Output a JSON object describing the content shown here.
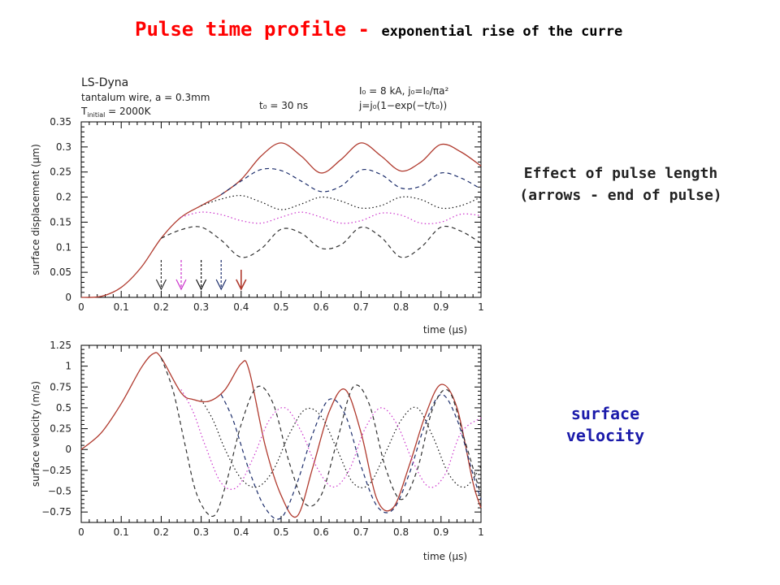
{
  "slide": {
    "title": "Pulse time profile - ",
    "title_sub": "exponential rise of the current",
    "note_effect_line1": "Effect of pulse length",
    "note_effect_line2": "(arrows - end of pulse)",
    "note_velocity_line1": "surface",
    "note_velocity_line2": "velocity"
  },
  "colors": {
    "title": "#ff0000",
    "note_velocity": "#1a1aaa",
    "t_0.4": "#b03a2e",
    "t_0.35": "#1c2d6b",
    "t_0.30": "#111111",
    "t_0.25": "#cc33cc",
    "t_0.20": "#303030"
  },
  "chart_data": [
    {
      "type": "line",
      "header": {
        "code": "LS-Dyna",
        "case": "tantalum wire, a = 0.3mm",
        "temp_label": "T",
        "temp_sub": "initial",
        "temp_value": " = 2000K",
        "t0": "t₀ = 30 ns",
        "current": "I₀ = 8 kA, j₀=I₀/πa²",
        "formula": "j=j₀(1−exp(−t/t₀))"
      },
      "xlabel": "time (μs)",
      "ylabel": "surface displacement (μm)",
      "xlim": [
        0,
        1
      ],
      "ylim": [
        0,
        0.35
      ],
      "xticks": [
        "0",
        "0.1",
        "0.2",
        "0.3",
        "0.4",
        "0.5",
        "0.6",
        "0.7",
        "0.8",
        "0.9",
        "1"
      ],
      "yticks": [
        "0",
        "0.05",
        "0.1",
        "0.15",
        "0.2",
        "0.25",
        "0.3",
        "0.35"
      ],
      "grid": false,
      "arrows": [
        {
          "x": 0.2,
          "series": "t_0.20"
        },
        {
          "x": 0.25,
          "series": "t_0.25"
        },
        {
          "x": 0.3,
          "series": "t_0.30"
        },
        {
          "x": 0.35,
          "series": "t_0.35"
        },
        {
          "x": 0.4,
          "series": "t_0.4"
        }
      ],
      "series": [
        {
          "key": "t_0.4",
          "style": "solid",
          "x": [
            0,
            0.05,
            0.1,
            0.15,
            0.2,
            0.25,
            0.3,
            0.35,
            0.4,
            0.45,
            0.5,
            0.55,
            0.6,
            0.65,
            0.7,
            0.75,
            0.8,
            0.85,
            0.9,
            0.95,
            1.0
          ],
          "y": [
            0,
            0.002,
            0.02,
            0.06,
            0.118,
            0.16,
            0.183,
            0.205,
            0.235,
            0.282,
            0.308,
            0.282,
            0.248,
            0.275,
            0.308,
            0.282,
            0.252,
            0.27,
            0.305,
            0.29,
            0.262
          ]
        },
        {
          "key": "t_0.35",
          "style": "dash",
          "x": [
            0.35,
            0.4,
            0.45,
            0.5,
            0.55,
            0.6,
            0.65,
            0.7,
            0.75,
            0.8,
            0.85,
            0.9,
            0.95,
            1.0
          ],
          "y": [
            0.205,
            0.232,
            0.255,
            0.253,
            0.232,
            0.211,
            0.222,
            0.254,
            0.245,
            0.218,
            0.222,
            0.248,
            0.238,
            0.216
          ]
        },
        {
          "key": "t_0.30",
          "style": "dot",
          "x": [
            0.3,
            0.35,
            0.4,
            0.45,
            0.5,
            0.55,
            0.6,
            0.65,
            0.7,
            0.75,
            0.8,
            0.85,
            0.9,
            0.95,
            1.0
          ],
          "y": [
            0.183,
            0.196,
            0.203,
            0.19,
            0.175,
            0.186,
            0.2,
            0.192,
            0.178,
            0.183,
            0.2,
            0.195,
            0.178,
            0.183,
            0.2
          ]
        },
        {
          "key": "t_0.25",
          "style": "dot",
          "x": [
            0.25,
            0.3,
            0.35,
            0.4,
            0.45,
            0.5,
            0.55,
            0.6,
            0.65,
            0.7,
            0.75,
            0.8,
            0.85,
            0.9,
            0.95,
            1.0
          ],
          "y": [
            0.16,
            0.17,
            0.165,
            0.153,
            0.148,
            0.16,
            0.17,
            0.16,
            0.148,
            0.153,
            0.168,
            0.164,
            0.148,
            0.15,
            0.166,
            0.163
          ]
        },
        {
          "key": "t_0.20",
          "style": "dash",
          "x": [
            0.2,
            0.25,
            0.3,
            0.35,
            0.4,
            0.45,
            0.5,
            0.55,
            0.6,
            0.65,
            0.7,
            0.75,
            0.8,
            0.85,
            0.9,
            0.95,
            1.0
          ],
          "y": [
            0.118,
            0.135,
            0.14,
            0.114,
            0.08,
            0.097,
            0.136,
            0.128,
            0.098,
            0.105,
            0.14,
            0.12,
            0.08,
            0.1,
            0.14,
            0.132,
            0.108
          ]
        }
      ]
    },
    {
      "type": "line",
      "xlabel": "time (μs)",
      "ylabel": "surface velocity (m/s)",
      "xlim": [
        0,
        1
      ],
      "ylim": [
        -0.875,
        1.25
      ],
      "xticks": [
        "0",
        "0.1",
        "0.2",
        "0.3",
        "0.4",
        "0.5",
        "0.6",
        "0.7",
        "0.8",
        "0.9",
        "1"
      ],
      "yticks": [
        "−0.75",
        "−0.5",
        "−0.25",
        "0",
        "0.25",
        "0.5",
        "0.75",
        "1",
        "1.25"
      ],
      "ytick_values": [
        -0.75,
        -0.5,
        -0.25,
        0,
        0.25,
        0.5,
        0.75,
        1,
        1.25
      ],
      "grid": false,
      "series": [
        {
          "key": "t_0.4",
          "style": "solid",
          "x": [
            0,
            0.05,
            0.1,
            0.15,
            0.18,
            0.2,
            0.25,
            0.28,
            0.32,
            0.36,
            0.4,
            0.42,
            0.46,
            0.5,
            0.54,
            0.58,
            0.62,
            0.66,
            0.7,
            0.74,
            0.78,
            0.82,
            0.86,
            0.9,
            0.94,
            0.98,
            1.0
          ],
          "y": [
            0,
            0.2,
            0.55,
            0.98,
            1.15,
            1.1,
            0.68,
            0.6,
            0.58,
            0.72,
            1.03,
            0.95,
            0.05,
            -0.55,
            -0.8,
            -0.2,
            0.45,
            0.72,
            0.2,
            -0.6,
            -0.7,
            -0.2,
            0.4,
            0.78,
            0.5,
            -0.4,
            -0.7
          ]
        },
        {
          "key": "t_0.35",
          "style": "dash",
          "x": [
            0.35,
            0.38,
            0.42,
            0.46,
            0.5,
            0.54,
            0.58,
            0.62,
            0.66,
            0.7,
            0.74,
            0.78,
            0.82,
            0.86,
            0.9,
            0.94,
            0.98,
            1.0
          ],
          "y": [
            0.66,
            0.35,
            -0.25,
            -0.7,
            -0.82,
            -0.4,
            0.2,
            0.6,
            0.42,
            -0.2,
            -0.68,
            -0.72,
            -0.3,
            0.3,
            0.66,
            0.36,
            -0.3,
            -0.6
          ]
        },
        {
          "key": "t_0.30",
          "style": "dot",
          "x": [
            0.3,
            0.33,
            0.36,
            0.4,
            0.44,
            0.48,
            0.52,
            0.56,
            0.6,
            0.64,
            0.68,
            0.72,
            0.76,
            0.8,
            0.84,
            0.88,
            0.92,
            0.96,
            1.0
          ],
          "y": [
            0.6,
            0.35,
            0.0,
            -0.35,
            -0.45,
            -0.25,
            0.18,
            0.48,
            0.4,
            0.0,
            -0.4,
            -0.42,
            -0.05,
            0.35,
            0.5,
            0.15,
            -0.3,
            -0.45,
            -0.2
          ]
        },
        {
          "key": "t_0.25",
          "style": "dot",
          "x": [
            0.25,
            0.28,
            0.31,
            0.35,
            0.39,
            0.43,
            0.47,
            0.51,
            0.55,
            0.59,
            0.63,
            0.67,
            0.71,
            0.75,
            0.79,
            0.83,
            0.87,
            0.91,
            0.95,
            1.0
          ],
          "y": [
            0.72,
            0.45,
            0.05,
            -0.4,
            -0.45,
            -0.1,
            0.35,
            0.5,
            0.22,
            -0.22,
            -0.45,
            -0.25,
            0.25,
            0.5,
            0.3,
            -0.15,
            -0.45,
            -0.3,
            0.2,
            0.38
          ]
        },
        {
          "key": "t_0.20",
          "style": "dash",
          "x": [
            0.2,
            0.23,
            0.26,
            0.29,
            0.33,
            0.36,
            0.4,
            0.44,
            0.48,
            0.52,
            0.56,
            0.6,
            0.64,
            0.68,
            0.72,
            0.76,
            0.8,
            0.84,
            0.88,
            0.92,
            0.96,
            1.0
          ],
          "y": [
            1.1,
            0.7,
            0.05,
            -0.55,
            -0.8,
            -0.45,
            0.3,
            0.75,
            0.55,
            -0.15,
            -0.65,
            -0.55,
            0.1,
            0.75,
            0.55,
            -0.2,
            -0.6,
            -0.25,
            0.5,
            0.7,
            0.1,
            -0.55
          ]
        }
      ]
    }
  ]
}
